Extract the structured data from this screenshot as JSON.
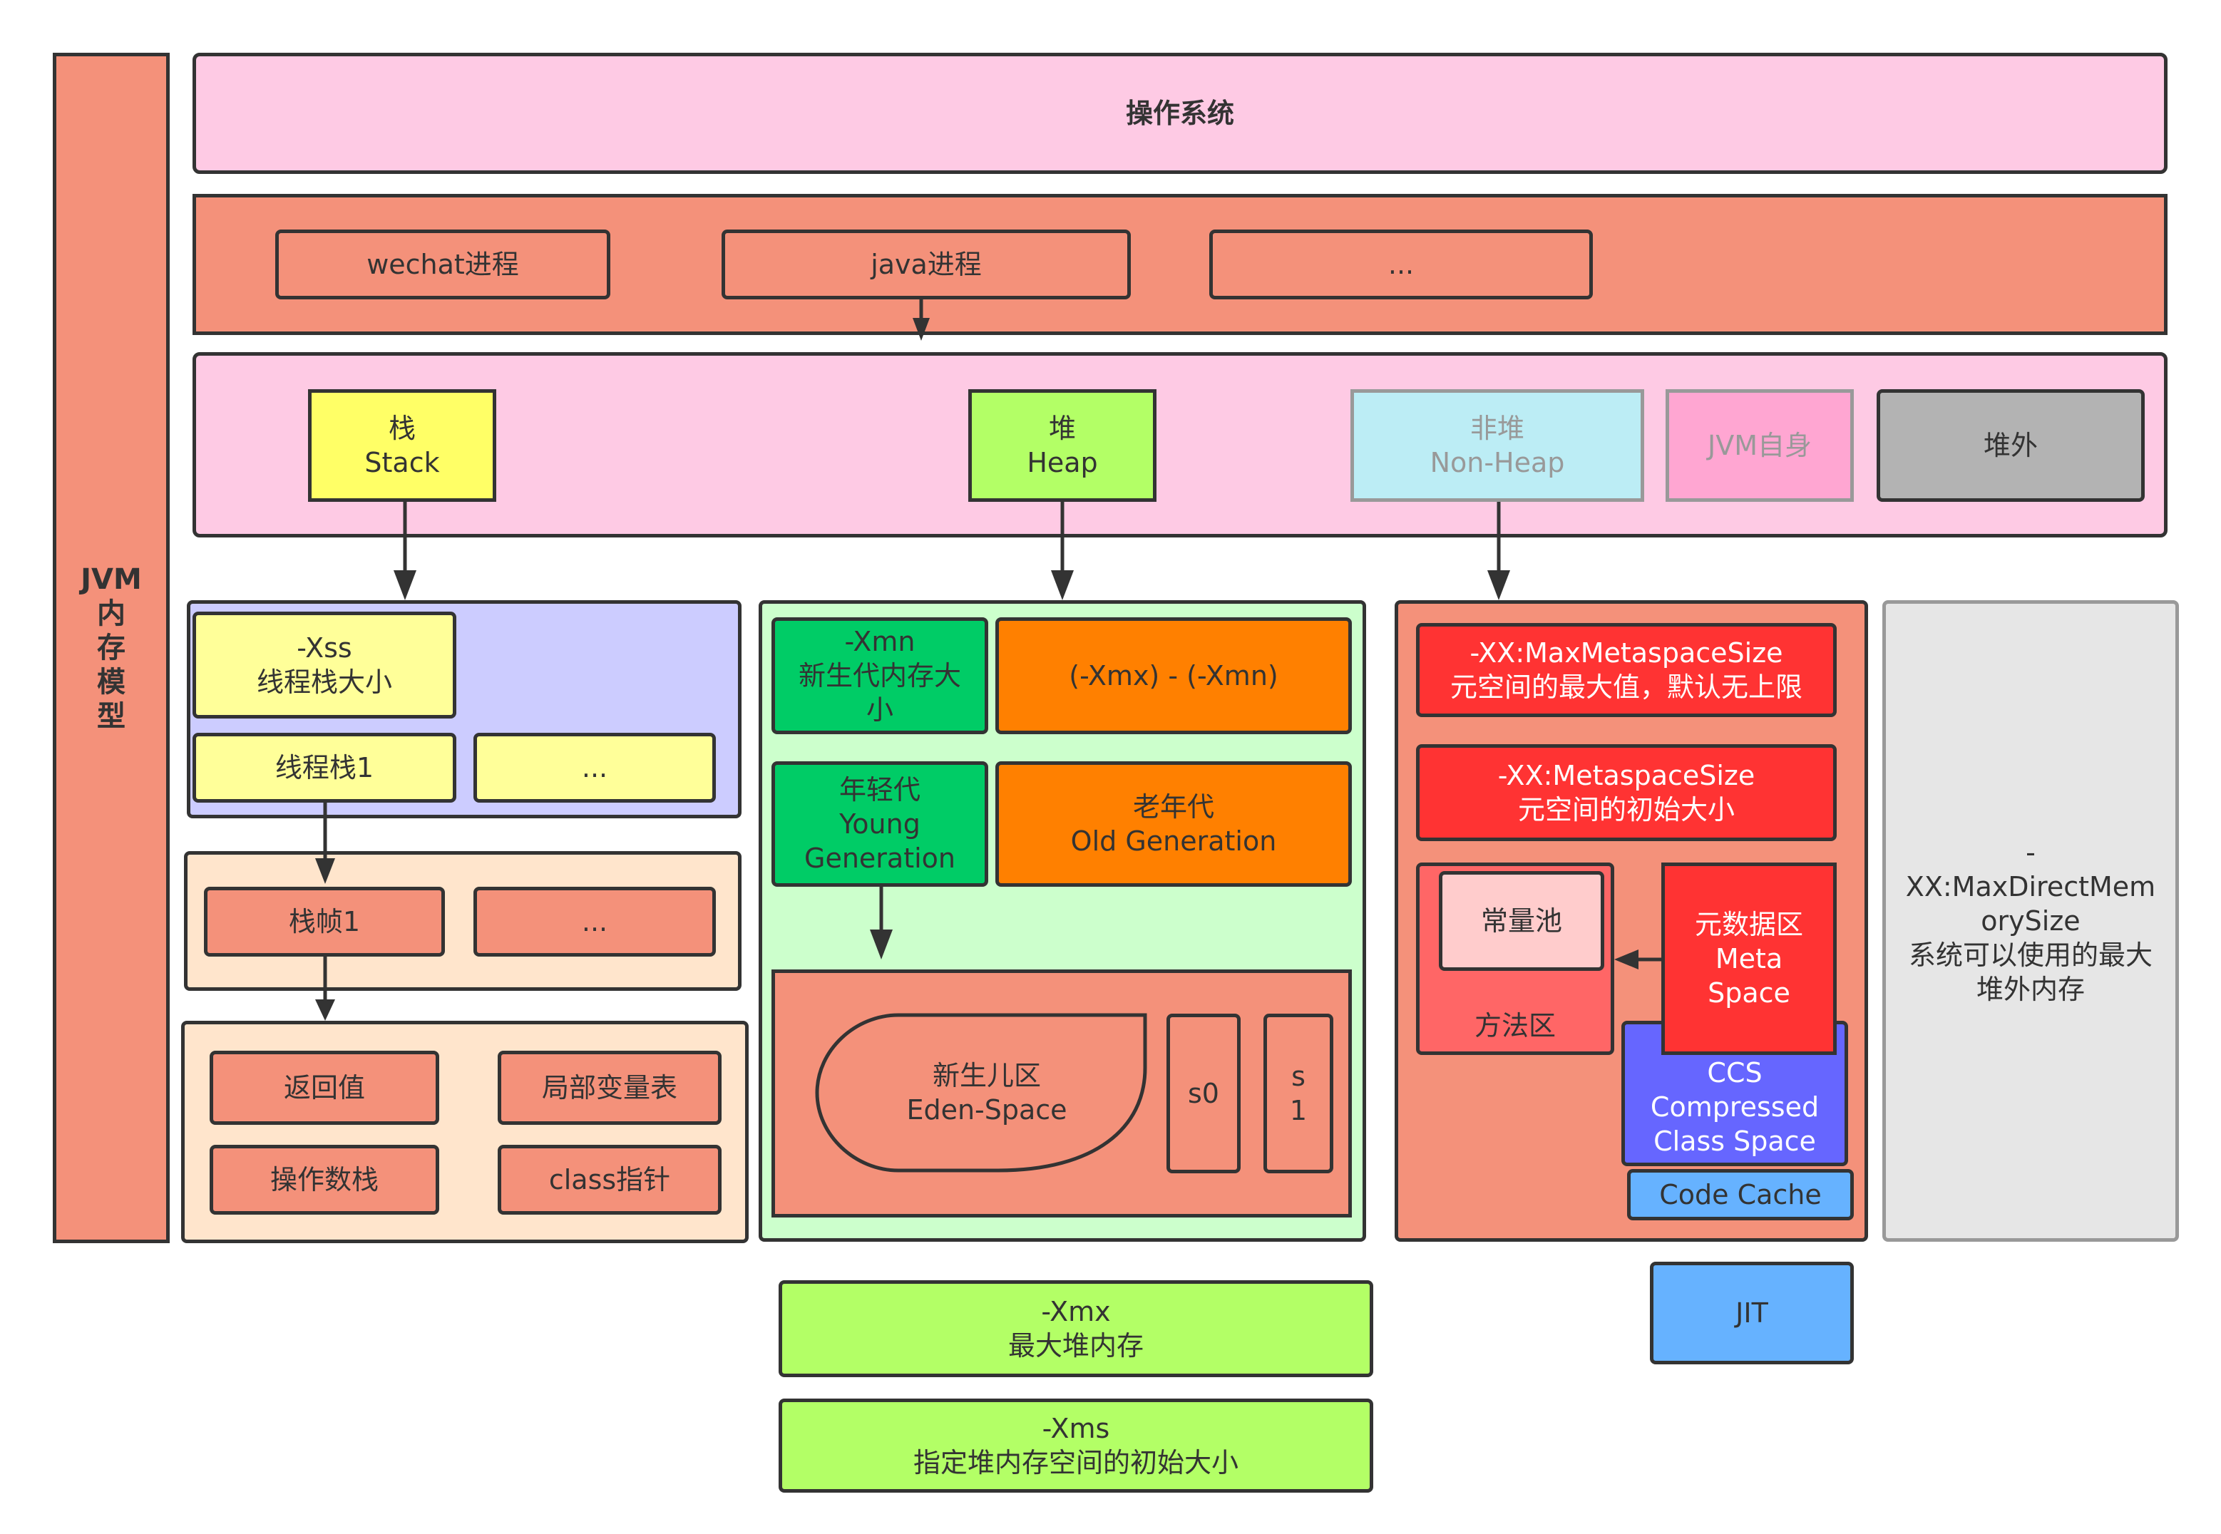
{
  "title_vertical": "JVM\n内\n存\n模\n型",
  "os": {
    "label": "操作系统"
  },
  "processes": [
    "wechat进程",
    "java进程",
    "..."
  ],
  "regions": {
    "stack": "栈\nStack",
    "heap": "堆\nHeap",
    "non_heap": "非堆\nNon-Heap",
    "jvm_self": "JVM自身",
    "off_heap": "堆外"
  },
  "stack_area": {
    "xss": "-Xss\n线程栈大小",
    "thread_stack": "线程栈1",
    "thread_more": "...",
    "frame": "栈帧1",
    "frame_more": "...",
    "return_value": "返回值",
    "local_vars": "局部变量表",
    "operand_stack": "操作数栈",
    "class_pointer": "class指针"
  },
  "heap_area": {
    "xmn": "-Xmn\n新生代内存大\n小",
    "old_size": "(-Xmx) - (-Xmn)",
    "young": "年轻代\nYoung\nGeneration",
    "old": "老年代\nOld Generation",
    "eden": "新生儿区\nEden-Space",
    "s0": "s0",
    "s1": "s\n1",
    "xmx": "-Xmx\n最大堆内存",
    "xms": "-Xms\n指定堆内存空间的初始大小"
  },
  "nonheap_area": {
    "max_meta": "-XX:MaxMetaspaceSize\n元空间的最大值，默认无上限",
    "meta_size": "-XX:MetaspaceSize\n元空间的初始大小",
    "method_area": "方法区",
    "constant_pool": "常量池",
    "meta_space": "元数据区\nMeta\nSpace",
    "ccs": "CCS\nCompressed\nClass Space",
    "code_cache": "Code Cache",
    "jit": "JIT"
  },
  "offheap_area": {
    "direct_memory": "-\nXX:MaxDirectMem\norySize\n系统可以使用的最大\n堆外内存"
  },
  "colors": {
    "salmon": "#F4917A",
    "pink": "#FECAE4",
    "yellow": "#FFFF66",
    "pale_yellow": "#FFFF99",
    "lime": "#B3FF66",
    "light_blue": "#BCEDF5",
    "light_pink": "#FFA6D2",
    "gray": "#B3B3B3",
    "lavender": "#CCCCFF",
    "peach": "#FFE5CC",
    "mint": "#CCFFCC",
    "green": "#00CC66",
    "orange": "#FF8000",
    "red": "#FF3333",
    "rose": "#FF6666",
    "blush": "#FFCCCC",
    "blue": "#6666FF",
    "sky": "#66B2FF",
    "silver": "#E6E6E6"
  }
}
